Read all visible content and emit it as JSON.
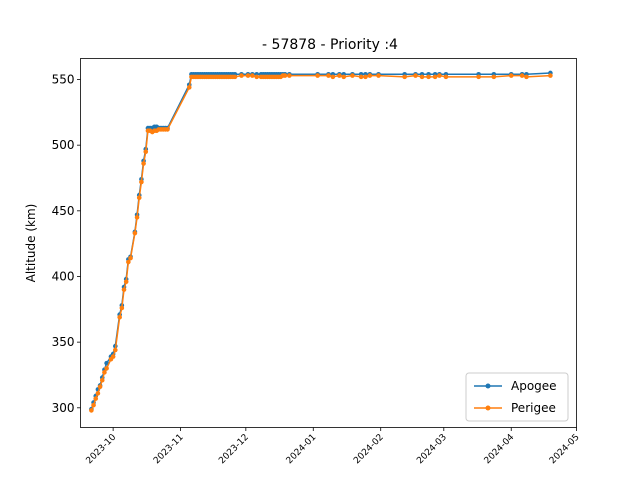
{
  "chart_data": {
    "type": "line",
    "title": "- 57878 - Priority :4",
    "xlabel": "",
    "ylabel": "Altitude (km)",
    "x_axis": {
      "min": "2023-09-16",
      "max": "2024-05-01",
      "ticks": [
        "2023-10",
        "2023-11",
        "2023-12",
        "2024-01",
        "2024-02",
        "2024-03",
        "2024-04",
        "2024-05"
      ]
    },
    "y_axis": {
      "min": 285,
      "max": 566,
      "ticks": [
        300,
        350,
        400,
        450,
        500,
        550
      ]
    },
    "legend": {
      "position": "lower-right",
      "entries": [
        "Apogee",
        "Perigee"
      ]
    },
    "series": [
      {
        "name": "Apogee",
        "color": "#1f77b4",
        "points": [
          [
            "2023-09-21",
            299
          ],
          [
            "2023-09-22",
            304
          ],
          [
            "2023-09-23",
            309
          ],
          [
            "2023-09-24",
            314
          ],
          [
            "2023-09-25",
            317
          ],
          [
            "2023-09-26",
            323
          ],
          [
            "2023-09-27",
            329
          ],
          [
            "2023-09-28",
            334
          ],
          [
            "2023-09-30",
            339
          ],
          [
            "2023-10-01",
            341
          ],
          [
            "2023-10-02",
            347
          ],
          [
            "2023-10-04",
            371
          ],
          [
            "2023-10-05",
            378
          ],
          [
            "2023-10-06",
            392
          ],
          [
            "2023-10-07",
            398
          ],
          [
            "2023-10-08",
            413
          ],
          [
            "2023-10-09",
            415
          ],
          [
            "2023-10-11",
            434
          ],
          [
            "2023-10-12",
            447
          ],
          [
            "2023-10-13",
            462
          ],
          [
            "2023-10-14",
            474
          ],
          [
            "2023-10-15",
            488
          ],
          [
            "2023-10-16",
            497
          ],
          [
            "2023-10-17",
            513
          ],
          [
            "2023-10-18",
            513
          ],
          [
            "2023-10-19",
            513
          ],
          [
            "2023-10-20",
            514
          ],
          [
            "2023-10-21",
            514
          ],
          [
            "2023-10-22",
            513
          ],
          [
            "2023-10-23",
            513
          ],
          [
            "2023-10-24",
            513
          ],
          [
            "2023-10-25",
            513
          ],
          [
            "2023-10-26",
            513
          ],
          [
            "2023-11-05",
            546
          ],
          [
            "2023-11-06",
            554
          ],
          [
            "2023-11-07",
            554
          ],
          [
            "2023-11-08",
            554
          ],
          [
            "2023-11-09",
            554
          ],
          [
            "2023-11-10",
            554
          ],
          [
            "2023-11-11",
            554
          ],
          [
            "2023-11-12",
            554
          ],
          [
            "2023-11-13",
            554
          ],
          [
            "2023-11-14",
            554
          ],
          [
            "2023-11-15",
            554
          ],
          [
            "2023-11-16",
            554
          ],
          [
            "2023-11-17",
            554
          ],
          [
            "2023-11-18",
            554
          ],
          [
            "2023-11-19",
            554
          ],
          [
            "2023-11-20",
            554
          ],
          [
            "2023-11-21",
            554
          ],
          [
            "2023-11-22",
            554
          ],
          [
            "2023-11-23",
            554
          ],
          [
            "2023-11-24",
            554
          ],
          [
            "2023-11-25",
            554
          ],
          [
            "2023-11-26",
            554
          ],
          [
            "2023-11-29",
            554
          ],
          [
            "2023-12-02",
            554
          ],
          [
            "2023-12-04",
            554
          ],
          [
            "2023-12-06",
            554
          ],
          [
            "2023-12-08",
            554
          ],
          [
            "2023-12-09",
            554
          ],
          [
            "2023-12-10",
            554
          ],
          [
            "2023-12-11",
            554
          ],
          [
            "2023-12-12",
            554
          ],
          [
            "2023-12-13",
            554
          ],
          [
            "2023-12-14",
            554
          ],
          [
            "2023-12-15",
            554
          ],
          [
            "2023-12-16",
            554
          ],
          [
            "2023-12-17",
            554
          ],
          [
            "2023-12-18",
            554
          ],
          [
            "2023-12-19",
            554
          ],
          [
            "2023-12-21",
            554
          ],
          [
            "2024-01-03",
            554
          ],
          [
            "2024-01-08",
            554
          ],
          [
            "2024-01-10",
            554
          ],
          [
            "2024-01-13",
            554
          ],
          [
            "2024-01-15",
            554
          ],
          [
            "2024-01-19",
            554
          ],
          [
            "2024-01-23",
            554
          ],
          [
            "2024-01-25",
            554
          ],
          [
            "2024-01-27",
            554
          ],
          [
            "2024-01-31",
            554
          ],
          [
            "2024-02-12",
            554
          ],
          [
            "2024-02-17",
            554
          ],
          [
            "2024-02-20",
            554
          ],
          [
            "2024-02-23",
            554
          ],
          [
            "2024-02-26",
            554
          ],
          [
            "2024-02-28",
            554
          ],
          [
            "2024-03-02",
            554
          ],
          [
            "2024-03-17",
            554
          ],
          [
            "2024-03-24",
            554
          ],
          [
            "2024-04-01",
            554
          ],
          [
            "2024-04-06",
            554
          ],
          [
            "2024-04-08",
            554
          ],
          [
            "2024-04-19",
            555
          ]
        ]
      },
      {
        "name": "Perigee",
        "color": "#ff7f0e",
        "points": [
          [
            "2023-09-21",
            298
          ],
          [
            "2023-09-22",
            302
          ],
          [
            "2023-09-23",
            307
          ],
          [
            "2023-09-24",
            311
          ],
          [
            "2023-09-25",
            316
          ],
          [
            "2023-09-26",
            321
          ],
          [
            "2023-09-27",
            327
          ],
          [
            "2023-09-28",
            330
          ],
          [
            "2023-09-30",
            337
          ],
          [
            "2023-10-01",
            339
          ],
          [
            "2023-10-02",
            344
          ],
          [
            "2023-10-04",
            369
          ],
          [
            "2023-10-05",
            376
          ],
          [
            "2023-10-06",
            390
          ],
          [
            "2023-10-07",
            396
          ],
          [
            "2023-10-08",
            411
          ],
          [
            "2023-10-09",
            414
          ],
          [
            "2023-10-11",
            433
          ],
          [
            "2023-10-12",
            445
          ],
          [
            "2023-10-13",
            460
          ],
          [
            "2023-10-14",
            472
          ],
          [
            "2023-10-15",
            486
          ],
          [
            "2023-10-16",
            495
          ],
          [
            "2023-10-17",
            511
          ],
          [
            "2023-10-18",
            511
          ],
          [
            "2023-10-19",
            510
          ],
          [
            "2023-10-20",
            511
          ],
          [
            "2023-10-21",
            511
          ],
          [
            "2023-10-22",
            512
          ],
          [
            "2023-10-23",
            512
          ],
          [
            "2023-10-24",
            512
          ],
          [
            "2023-10-25",
            512
          ],
          [
            "2023-10-26",
            512
          ],
          [
            "2023-11-05",
            544
          ],
          [
            "2023-11-06",
            552
          ],
          [
            "2023-11-07",
            552
          ],
          [
            "2023-11-08",
            552
          ],
          [
            "2023-11-09",
            552
          ],
          [
            "2023-11-10",
            552
          ],
          [
            "2023-11-11",
            552
          ],
          [
            "2023-11-12",
            552
          ],
          [
            "2023-11-13",
            552
          ],
          [
            "2023-11-14",
            552
          ],
          [
            "2023-11-15",
            552
          ],
          [
            "2023-11-16",
            552
          ],
          [
            "2023-11-17",
            552
          ],
          [
            "2023-11-18",
            552
          ],
          [
            "2023-11-19",
            552
          ],
          [
            "2023-11-20",
            552
          ],
          [
            "2023-11-21",
            552
          ],
          [
            "2023-11-22",
            552
          ],
          [
            "2023-11-23",
            552
          ],
          [
            "2023-11-24",
            552
          ],
          [
            "2023-11-25",
            552
          ],
          [
            "2023-11-26",
            552
          ],
          [
            "2023-11-29",
            553
          ],
          [
            "2023-12-02",
            553
          ],
          [
            "2023-12-04",
            553
          ],
          [
            "2023-12-06",
            552
          ],
          [
            "2023-12-08",
            552
          ],
          [
            "2023-12-09",
            552
          ],
          [
            "2023-12-10",
            552
          ],
          [
            "2023-12-11",
            552
          ],
          [
            "2023-12-12",
            552
          ],
          [
            "2023-12-13",
            552
          ],
          [
            "2023-12-14",
            552
          ],
          [
            "2023-12-15",
            552
          ],
          [
            "2023-12-16",
            552
          ],
          [
            "2023-12-17",
            552
          ],
          [
            "2023-12-18",
            553
          ],
          [
            "2023-12-19",
            553
          ],
          [
            "2023-12-21",
            553
          ],
          [
            "2024-01-03",
            553
          ],
          [
            "2024-01-08",
            553
          ],
          [
            "2024-01-10",
            552
          ],
          [
            "2024-01-13",
            553
          ],
          [
            "2024-01-15",
            552
          ],
          [
            "2024-01-19",
            553
          ],
          [
            "2024-01-23",
            552
          ],
          [
            "2024-01-25",
            552
          ],
          [
            "2024-01-27",
            553
          ],
          [
            "2024-01-31",
            553
          ],
          [
            "2024-02-12",
            552
          ],
          [
            "2024-02-17",
            553
          ],
          [
            "2024-02-20",
            552
          ],
          [
            "2024-02-23",
            552
          ],
          [
            "2024-02-26",
            552
          ],
          [
            "2024-02-28",
            553
          ],
          [
            "2024-03-02",
            552
          ],
          [
            "2024-03-17",
            552
          ],
          [
            "2024-03-24",
            552
          ],
          [
            "2024-04-01",
            553
          ],
          [
            "2024-04-06",
            553
          ],
          [
            "2024-04-08",
            552
          ],
          [
            "2024-04-19",
            553
          ]
        ]
      }
    ]
  }
}
